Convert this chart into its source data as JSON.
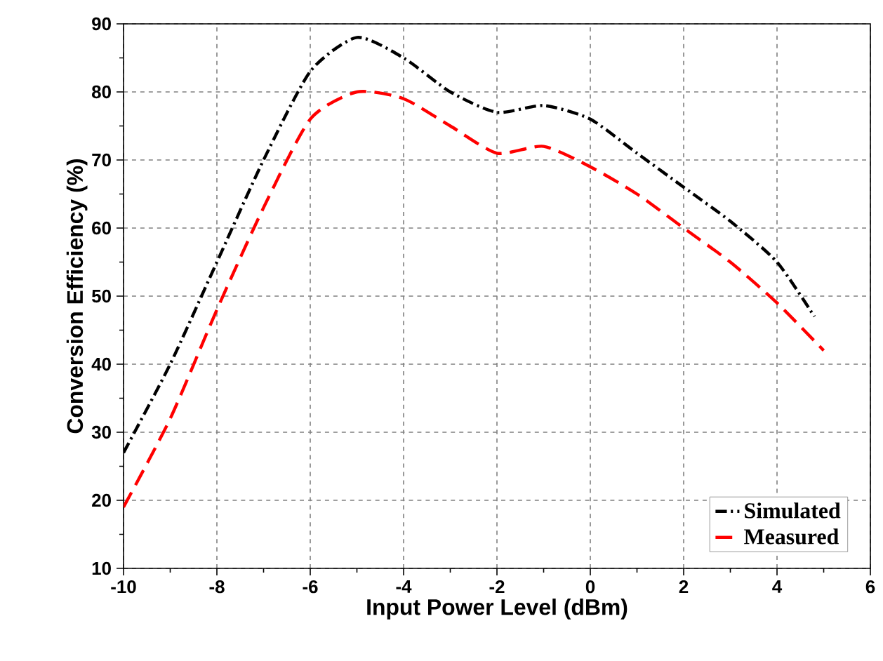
{
  "chart_data": {
    "type": "line",
    "xlabel": "Input Power Level (dBm)",
    "ylabel": "Conversion Efficiency (%)",
    "xlim": [
      -10,
      6
    ],
    "ylim": [
      10,
      90
    ],
    "xticks": [
      -10,
      -8,
      -6,
      -4,
      -2,
      0,
      2,
      4,
      6
    ],
    "yticks": [
      10,
      20,
      30,
      40,
      50,
      60,
      70,
      80,
      90
    ],
    "grid": true,
    "legend": "bottom right",
    "series": [
      {
        "name": "Simulated",
        "color": "#000000",
        "line_style": "dashdotted",
        "x": [
          -10,
          -9,
          -8,
          -7,
          -6,
          -5,
          -4,
          -3,
          -2,
          -1,
          0,
          1,
          2,
          3,
          4,
          4.8
        ],
        "values": [
          27,
          40,
          55,
          70,
          83,
          88,
          85,
          80,
          77,
          78,
          76,
          71,
          66,
          61,
          55,
          47
        ]
      },
      {
        "name": "Measured",
        "color": "#ff0000",
        "line_style": "dashed",
        "x": [
          -10,
          -9,
          -8,
          -7,
          -6,
          -5,
          -4,
          -3,
          -2,
          -1,
          0,
          1,
          2,
          3,
          4,
          5
        ],
        "values": [
          19,
          32,
          48,
          63,
          76,
          80,
          79,
          75,
          71,
          72,
          69,
          65,
          60,
          55,
          49,
          42
        ]
      }
    ]
  }
}
